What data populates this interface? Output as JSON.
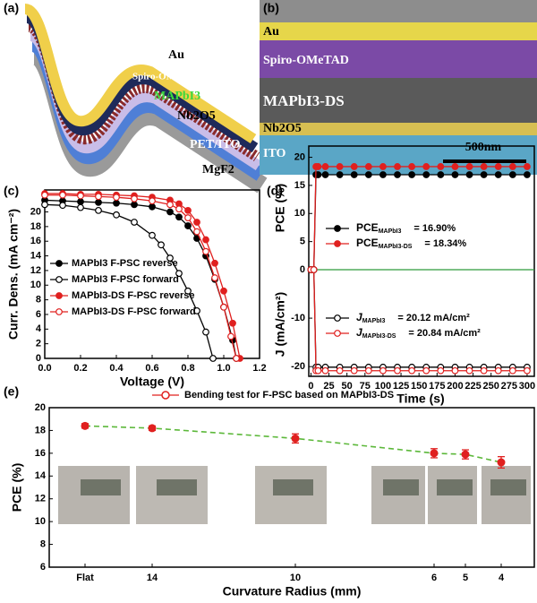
{
  "panels": {
    "illustration": {
      "label": "(a)",
      "layers": [
        "Au",
        "Spiro-OMeTAD",
        "MAPbI3",
        "Nb2O5",
        "PET/ITO",
        "MgF2"
      ]
    },
    "sem": {
      "label": "(b)",
      "layers": [
        "Au",
        "Spiro-OMeTAD",
        "MAPbI3-DS",
        "Nb2O5",
        "ITO"
      ],
      "scale_bar": "500nm"
    }
  },
  "chart_data": [
    {
      "type": "line",
      "panel_label": "(c)",
      "xlabel": "Voltage (V)",
      "ylabel": "Curr. Dens. (mA cm⁻²)",
      "xlim": [
        0,
        1.2
      ],
      "xticks": [
        {
          "value": 0,
          "label": "0.0"
        },
        0.2,
        0.4,
        0.6,
        0.8,
        {
          "value": 1,
          "label": "1.0"
        },
        1.2
      ],
      "ylim": [
        0,
        23
      ],
      "yticks": [
        0,
        2,
        4,
        6,
        8,
        10,
        12,
        14,
        16,
        18,
        20
      ],
      "series": [
        {
          "name": "MAPbI3 F-PSC reverse",
          "color": "#000000",
          "marker_filled": true,
          "x": [
            0,
            0.1,
            0.2,
            0.3,
            0.4,
            0.5,
            0.6,
            0.7,
            0.75,
            0.8,
            0.85,
            0.9,
            0.95,
            1.0,
            1.05,
            1.07
          ],
          "values": [
            21.6,
            21.5,
            21.4,
            21.3,
            21.2,
            21.0,
            20.7,
            20.0,
            19.3,
            18.1,
            16.4,
            14.0,
            10.8,
            7.0,
            2.5,
            0
          ]
        },
        {
          "name": "MAPbI3 F-PSC forward",
          "color": "#000000",
          "marker_filled": false,
          "x": [
            0,
            0.1,
            0.2,
            0.3,
            0.4,
            0.5,
            0.6,
            0.65,
            0.7,
            0.75,
            0.8,
            0.85,
            0.9,
            0.94
          ],
          "values": [
            21.0,
            20.9,
            20.6,
            20.2,
            19.6,
            18.6,
            16.8,
            15.5,
            13.7,
            11.6,
            9.2,
            6.5,
            3.6,
            0
          ]
        },
        {
          "name": "MAPbI3-DS F-PSC reverse",
          "color": "#e0201f",
          "marker_filled": true,
          "x": [
            0,
            0.1,
            0.2,
            0.3,
            0.4,
            0.5,
            0.6,
            0.7,
            0.75,
            0.8,
            0.85,
            0.9,
            0.95,
            1.0,
            1.05,
            1.09
          ],
          "values": [
            22.5,
            22.5,
            22.4,
            22.4,
            22.3,
            22.2,
            22.0,
            21.6,
            21.1,
            20.2,
            18.6,
            16.2,
            13.0,
            9.2,
            4.8,
            0
          ]
        },
        {
          "name": "MAPbI3-DS F-PSC forward",
          "color": "#e0201f",
          "marker_filled": false,
          "x": [
            0,
            0.1,
            0.2,
            0.3,
            0.4,
            0.5,
            0.6,
            0.7,
            0.75,
            0.8,
            0.85,
            0.9,
            0.95,
            1.0,
            1.04,
            1.07
          ],
          "values": [
            22.3,
            22.3,
            22.2,
            22.1,
            22.0,
            21.8,
            21.5,
            21.0,
            20.4,
            19.2,
            17.3,
            14.6,
            11.0,
            7.0,
            3.0,
            0
          ]
        }
      ]
    },
    {
      "type": "line",
      "panel_label": "(d)",
      "ylabel": "PCE (%)",
      "xlim": [
        -3,
        310
      ],
      "ylim": [
        0,
        22
      ],
      "yticks": [
        0,
        5,
        10,
        15,
        20
      ],
      "zero_line_color": "#2e9a3a",
      "x": [
        0,
        4,
        7,
        10,
        20,
        40,
        60,
        80,
        100,
        120,
        140,
        160,
        180,
        200,
        220,
        240,
        260,
        280,
        300
      ],
      "series": [
        {
          "name": "PCE",
          "subscript": "MAPbI3",
          "label": "= 16.90%",
          "color": "#000000",
          "marker_filled": true,
          "values": [
            0,
            0,
            16.9,
            16.9,
            16.9,
            16.9,
            16.9,
            16.9,
            16.9,
            16.9,
            16.9,
            16.9,
            16.9,
            16.9,
            16.9,
            16.9,
            16.9,
            16.9,
            16.9
          ]
        },
        {
          "name": "PCE",
          "subscript": "MAPbI3-DS",
          "label": "= 18.34%",
          "color": "#e0201f",
          "marker_filled": true,
          "values": [
            0,
            0,
            18.34,
            18.34,
            18.34,
            18.34,
            18.34,
            18.34,
            18.34,
            18.34,
            18.34,
            18.34,
            18.34,
            18.34,
            18.34,
            18.34,
            18.34,
            18.34,
            18.34
          ]
        }
      ]
    },
    {
      "type": "line",
      "xlabel": "Time (s)",
      "ylabel": "J (mA/cm²)",
      "xlim": [
        -3,
        310
      ],
      "xticks": [
        0,
        25,
        50,
        75,
        100,
        125,
        150,
        175,
        200,
        225,
        250,
        275,
        300
      ],
      "ylim": [
        -22,
        0
      ],
      "yticks": [
        -20,
        -10
      ],
      "x": [
        0,
        4,
        7,
        10,
        20,
        40,
        60,
        80,
        100,
        120,
        140,
        160,
        180,
        200,
        220,
        240,
        260,
        280,
        300
      ],
      "series": [
        {
          "name": "J",
          "subscript": "MAPbI3",
          "label": "= 20.12 mA/cm²",
          "color": "#000000",
          "marker_filled": false,
          "values": [
            0,
            0,
            -20.12,
            -20.12,
            -20.12,
            -20.12,
            -20.12,
            -20.12,
            -20.12,
            -20.12,
            -20.12,
            -20.12,
            -20.12,
            -20.12,
            -20.12,
            -20.12,
            -20.12,
            -20.12,
            -20.12
          ]
        },
        {
          "name": "J",
          "subscript": "MAPbI3-DS",
          "label": "= 20.84 mA/cm²",
          "color": "#e0201f",
          "marker_filled": false,
          "values": [
            0,
            0,
            -20.84,
            -20.84,
            -20.84,
            -20.84,
            -20.84,
            -20.84,
            -20.84,
            -20.84,
            -20.84,
            -20.84,
            -20.84,
            -20.84,
            -20.84,
            -20.84,
            -20.84,
            -20.84,
            -20.84
          ]
        }
      ]
    },
    {
      "type": "errorbar",
      "panel_label": "(e)",
      "xlabel": "Curvature Radius (mm)",
      "ylabel": "PCE (%)",
      "legend": "Bending test for F-PSC based on MAPbI3-DS",
      "color": "#e0201f",
      "line_color": "#5cb83a",
      "categories": [
        "Flat",
        "14",
        "10",
        "6",
        "5",
        "4"
      ],
      "values": [
        18.4,
        18.2,
        17.3,
        16.0,
        15.9,
        15.2
      ],
      "errors": [
        0.2,
        0.2,
        0.4,
        0.4,
        0.4,
        0.5
      ],
      "ylim": [
        6,
        20
      ],
      "yticks": [
        6,
        8,
        10,
        12,
        14,
        16,
        18,
        20
      ]
    }
  ]
}
